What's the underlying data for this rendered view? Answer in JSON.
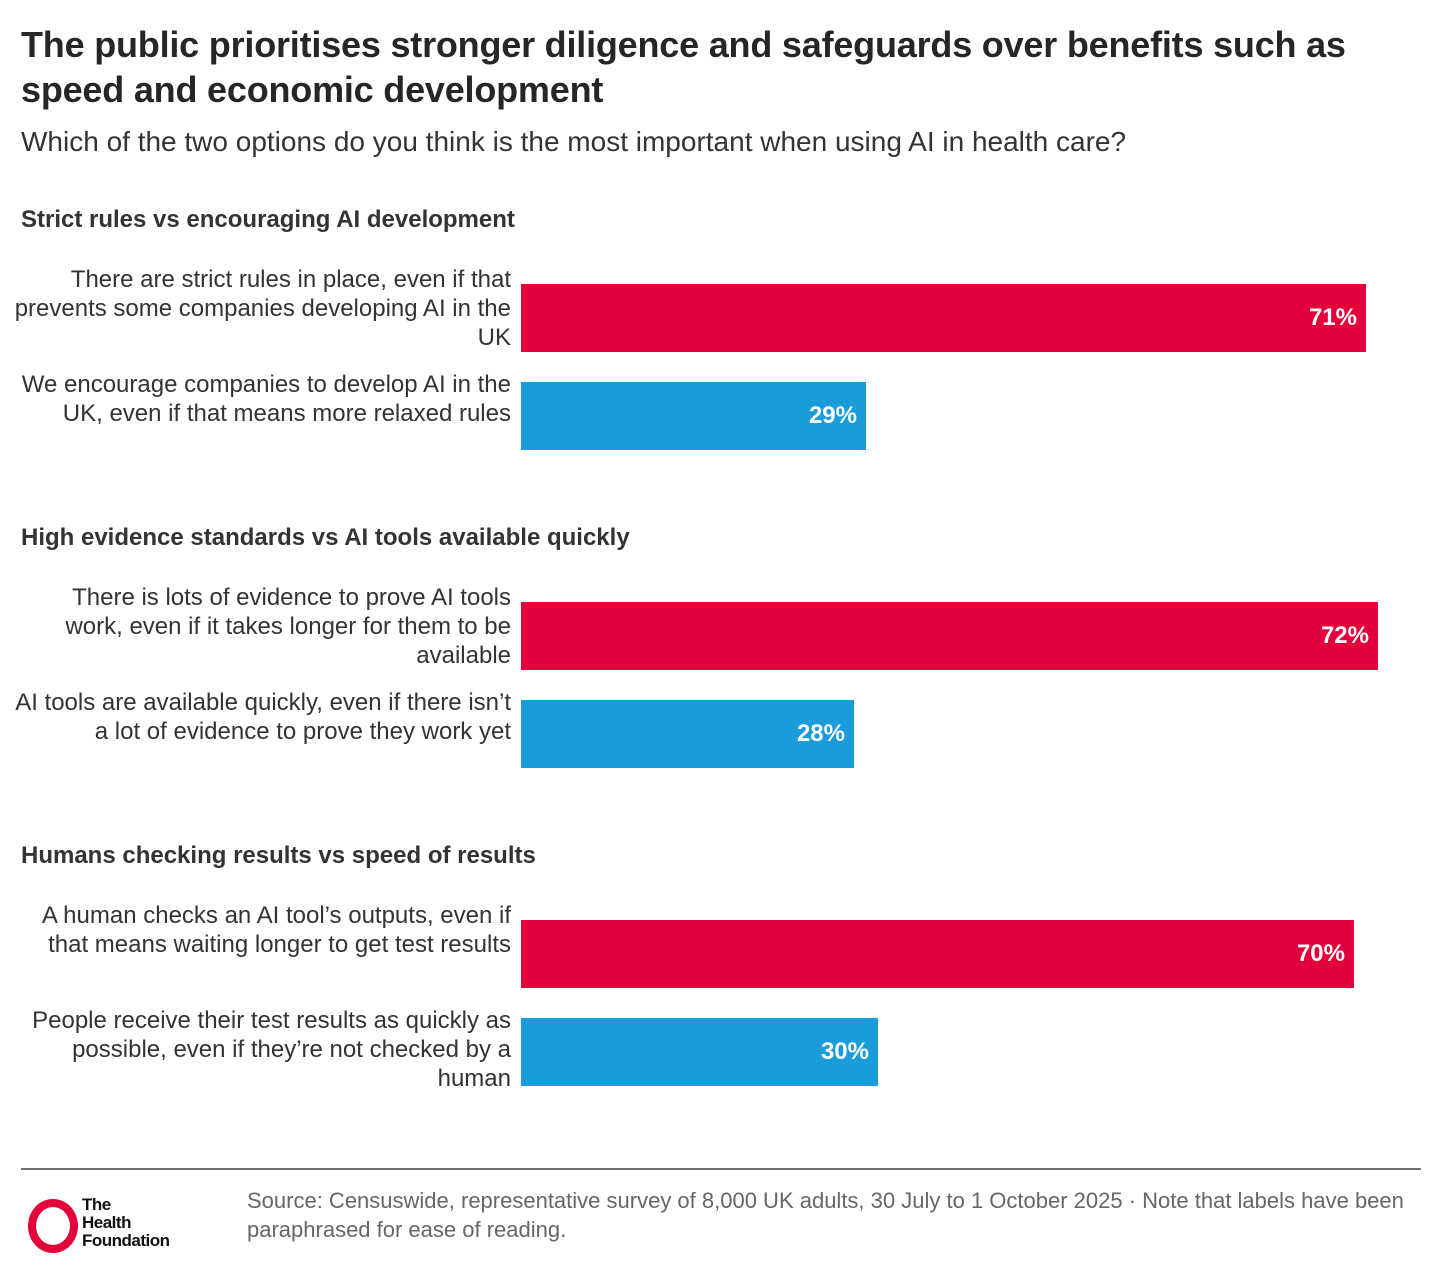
{
  "chart_data": {
    "type": "bar",
    "orientation": "horizontal",
    "title": "The public prioritises stronger diligence and safeguards over benefits such as speed and economic development",
    "subtitle": "Which of the two options do you think is the most important when using AI in health care?",
    "xlabel": "",
    "ylabel": "",
    "xlim": [
      0,
      100
    ],
    "unit": "%",
    "grid": false,
    "colors": {
      "priority": "#e4003b",
      "alternative": "#1a9cdb"
    },
    "groups": [
      {
        "title": "Strict rules vs encouraging AI development",
        "bars": [
          {
            "label": "There are strict rules in place, even if that prevents some companies developing AI in the UK",
            "value": 71,
            "value_label": "71%",
            "series": "priority"
          },
          {
            "label": "We encourage companies to develop AI in the UK, even if that means more relaxed rules",
            "value": 29,
            "value_label": "29%",
            "series": "alternative"
          }
        ]
      },
      {
        "title": "High evidence standards vs AI tools available quickly",
        "bars": [
          {
            "label": "There is lots of evidence to prove AI tools work, even if it takes longer for them to be available",
            "value": 72,
            "value_label": "72%",
            "series": "priority"
          },
          {
            "label": "AI tools are available quickly, even if there isn’t a lot of evidence to prove they work yet",
            "value": 28,
            "value_label": "28%",
            "series": "alternative"
          }
        ]
      },
      {
        "title": "Humans checking results vs speed of results",
        "bars": [
          {
            "label": "A human checks an AI tool’s outputs, even if that means waiting longer to get test results",
            "value": 70,
            "value_label": "70%",
            "series": "priority"
          },
          {
            "label": "People receive their test results as quickly as possible, even if they’re not checked by a human",
            "value": 30,
            "value_label": "30%",
            "series": "alternative"
          }
        ]
      }
    ]
  },
  "footer": {
    "logo": {
      "icon": "ring-logo-icon",
      "lines": [
        "The",
        "Health",
        "Foundation"
      ],
      "color": "#e4003b"
    },
    "source": "Source: Censuswide, representative survey of 8,000 UK adults, 30 July to 1 October 2025 · Note that labels have been paraphrased for ease of reading."
  }
}
